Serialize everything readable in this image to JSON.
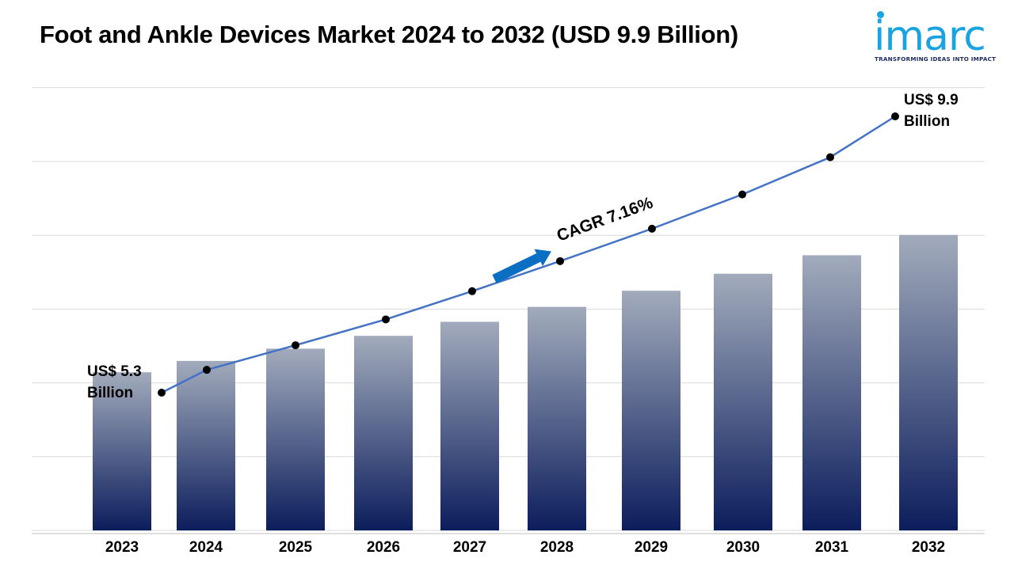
{
  "title": "Foot and Ankle Devices Market 2024 to 2032 (USD 9.9 Billion)",
  "logo": {
    "text": "imarc",
    "tagline": "TRANSFORMING IDEAS INTO IMPACT",
    "color": "#1aa3e0"
  },
  "cagr_label": "CAGR 7.16%",
  "callouts": {
    "start": {
      "line1": "US$ 5.3",
      "line2": "Billion"
    },
    "end": {
      "line1": "US$ 9.9",
      "line2": "Billion"
    }
  },
  "chart_data": {
    "type": "bar",
    "categories": [
      "2023",
      "2024",
      "2025",
      "2026",
      "2027",
      "2028",
      "2029",
      "2030",
      "2031",
      "2032"
    ],
    "values": [
      5.3,
      5.68,
      6.09,
      6.52,
      6.99,
      7.49,
      8.03,
      8.6,
      9.22,
      9.9
    ],
    "ylim": [
      0,
      12
    ],
    "grid": true,
    "line_overlay": true,
    "colors": {
      "bar_top": "#a2abbc",
      "bar_bottom": "#0c1d5c",
      "line": "#4472c4",
      "marker": "#000000",
      "arrow": "#0a6fc2"
    }
  }
}
